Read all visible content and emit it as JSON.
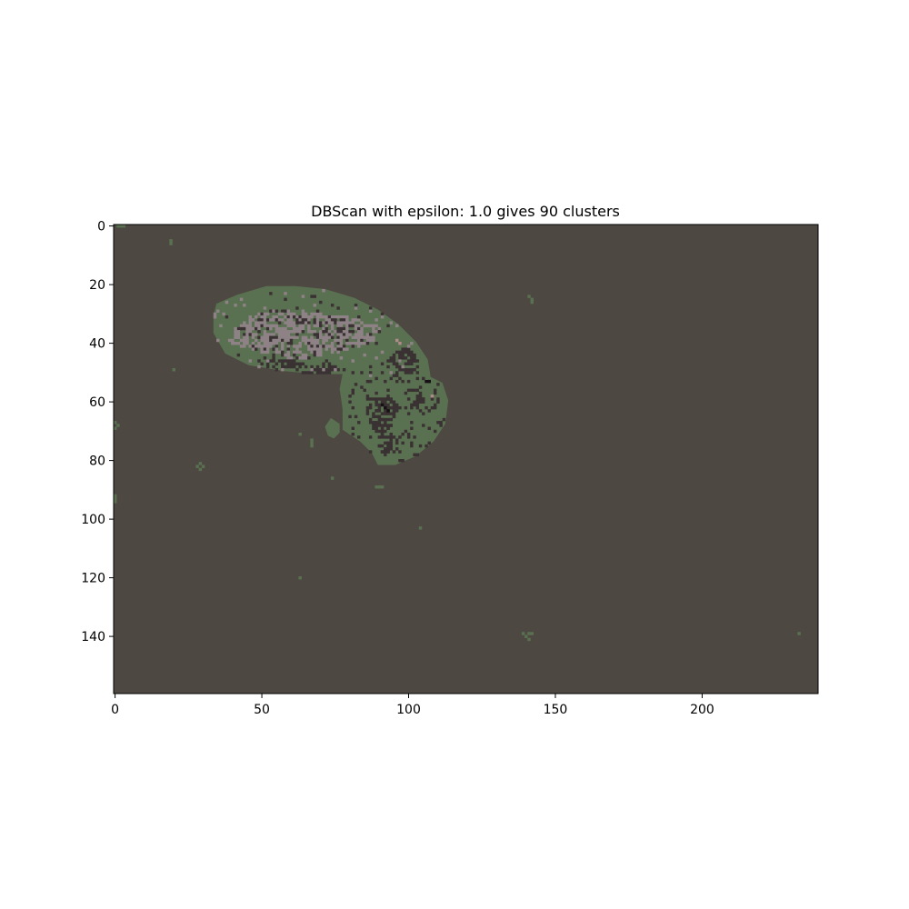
{
  "chart_data": {
    "type": "heatmap",
    "title": "DBScan with epsilon: 1.0 gives 90 clusters",
    "xlabel": "",
    "ylabel": "",
    "image_width": 240,
    "image_height": 160,
    "xlim": [
      0,
      240
    ],
    "ylim": [
      160,
      0
    ],
    "y_axis_inverted": true,
    "xticks": [
      0,
      50,
      100,
      150,
      200
    ],
    "yticks": [
      0,
      20,
      40,
      60,
      80,
      100,
      120,
      140
    ],
    "grid": false,
    "colors": {
      "background_cluster": "#4d4842",
      "foreground_cluster": "#5a7151",
      "light_cluster": "#8f8287",
      "dark_cluster": "#3a3133",
      "black_cluster": "#151012",
      "pink_cluster": "#b18a8c"
    },
    "regions": {
      "blob_upper_lobe": [
        [
          35,
          27
        ],
        [
          42,
          24
        ],
        [
          52,
          21
        ],
        [
          62,
          21
        ],
        [
          72,
          22
        ],
        [
          82,
          25
        ],
        [
          90,
          29
        ],
        [
          97,
          34
        ],
        [
          103,
          40
        ],
        [
          107,
          46
        ],
        [
          108,
          52
        ],
        [
          103,
          54
        ],
        [
          96,
          53
        ],
        [
          88,
          52
        ],
        [
          80,
          51
        ],
        [
          70,
          51
        ],
        [
          58,
          50
        ],
        [
          46,
          48
        ],
        [
          38,
          44
        ],
        [
          34,
          37
        ],
        [
          34,
          31
        ]
      ],
      "blob_lower_lobe": [
        [
          78,
          51
        ],
        [
          92,
          50
        ],
        [
          104,
          50
        ],
        [
          112,
          54
        ],
        [
          114,
          60
        ],
        [
          113,
          68
        ],
        [
          109,
          74
        ],
        [
          103,
          79
        ],
        [
          96,
          82
        ],
        [
          90,
          82
        ],
        [
          88,
          78
        ],
        [
          84,
          74
        ],
        [
          78,
          70
        ],
        [
          78,
          63
        ],
        [
          77,
          56
        ]
      ],
      "blob_small": [
        [
          74,
          66
        ],
        [
          77,
          68
        ],
        [
          77,
          71
        ],
        [
          75,
          73
        ],
        [
          73,
          72
        ],
        [
          72,
          69
        ]
      ],
      "light_core": [
        [
          41,
          36
        ],
        [
          47,
          31
        ],
        [
          55,
          29
        ],
        [
          64,
          29
        ],
        [
          74,
          31
        ],
        [
          84,
          32
        ],
        [
          91,
          35
        ],
        [
          90,
          40
        ],
        [
          82,
          42
        ],
        [
          72,
          45
        ],
        [
          62,
          46
        ],
        [
          52,
          44
        ],
        [
          44,
          42
        ],
        [
          39,
          40
        ]
      ],
      "dark_patches": [
        [
          [
            52,
            45
          ],
          [
            60,
            46
          ],
          [
            68,
            48
          ],
          [
            74,
            47
          ],
          [
            78,
            48
          ],
          [
            80,
            50
          ],
          [
            70,
            51
          ],
          [
            58,
            50
          ],
          [
            50,
            48
          ]
        ],
        [
          [
            96,
            43
          ],
          [
            101,
            42
          ],
          [
            104,
            45
          ],
          [
            103,
            50
          ],
          [
            100,
            51
          ],
          [
            96,
            49
          ],
          [
            94,
            46
          ]
        ],
        [
          [
            88,
            60
          ],
          [
            94,
            58
          ],
          [
            98,
            62
          ],
          [
            96,
            68
          ],
          [
            92,
            72
          ],
          [
            88,
            70
          ],
          [
            86,
            64
          ]
        ],
        [
          [
            90,
            72
          ],
          [
            96,
            71
          ],
          [
            98,
            77
          ],
          [
            94,
            79
          ],
          [
            90,
            78
          ]
        ],
        [
          [
            102,
            58
          ],
          [
            106,
            59
          ],
          [
            105,
            64
          ],
          [
            101,
            63
          ]
        ]
      ],
      "black_specks": [
        [
          91,
          61
        ],
        [
          92,
          62
        ],
        [
          93,
          63
        ],
        [
          106,
          53
        ],
        [
          107,
          53
        ]
      ],
      "pink_specks": [
        [
          96,
          39
        ],
        [
          97,
          40
        ],
        [
          108,
          58
        ]
      ],
      "isolated_points": [
        [
          1,
          0
        ],
        [
          2,
          0
        ],
        [
          3,
          0
        ],
        [
          19,
          5
        ],
        [
          19,
          6
        ],
        [
          141,
          24
        ],
        [
          142,
          25
        ],
        [
          142,
          26
        ],
        [
          0,
          67
        ],
        [
          1,
          68
        ],
        [
          0,
          69
        ],
        [
          20,
          49
        ],
        [
          63,
          71
        ],
        [
          67,
          73
        ],
        [
          67,
          74
        ],
        [
          67,
          75
        ],
        [
          74,
          86
        ],
        [
          89,
          89
        ],
        [
          90,
          89
        ],
        [
          91,
          89
        ],
        [
          28,
          82
        ],
        [
          29,
          81
        ],
        [
          29,
          83
        ],
        [
          30,
          82
        ],
        [
          0,
          92
        ],
        [
          0,
          93
        ],
        [
          0,
          94
        ],
        [
          104,
          103
        ],
        [
          63,
          120
        ],
        [
          139,
          139
        ],
        [
          140,
          140
        ],
        [
          141,
          139
        ],
        [
          142,
          139
        ],
        [
          141,
          141
        ],
        [
          233,
          139
        ],
        [
          64,
          22
        ]
      ]
    }
  }
}
